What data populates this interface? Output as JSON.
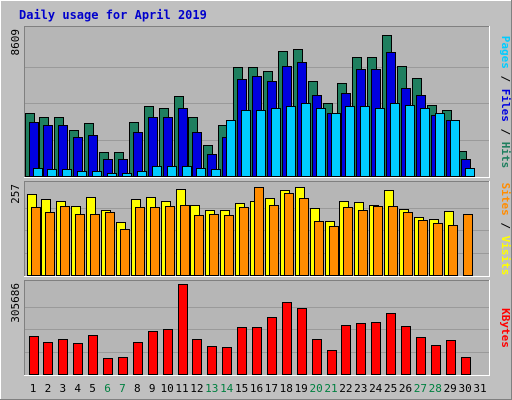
{
  "chart_data": {
    "type": "bar",
    "title": "Daily usage for April 2019",
    "colors": {
      "background": "#c0c0c0",
      "panel": "#b6b6b6",
      "title": "#0000cc",
      "hits": "#1f7f5f",
      "files": "#0000e0",
      "pages": "#00ccff",
      "visits": "#ffff00",
      "sites": "#ff8c00",
      "kbytes": "#ff0000",
      "weekend_label": "#008040",
      "weekday_label": "#000000"
    },
    "days": [
      "1",
      "2",
      "3",
      "4",
      "5",
      "6",
      "7",
      "8",
      "9",
      "10",
      "11",
      "12",
      "13",
      "14",
      "15",
      "16",
      "17",
      "18",
      "19",
      "20",
      "21",
      "22",
      "23",
      "24",
      "25",
      "26",
      "27",
      "28",
      "29",
      "30",
      "31"
    ],
    "weekend_days": [
      "6",
      "7",
      "13",
      "14",
      "20",
      "21",
      "27",
      "28"
    ],
    "panels": [
      {
        "id": "hits_files_pages",
        "max_label": "8609",
        "max": 8609,
        "axis_label": {
          "parts": [
            {
              "text": "Pages",
              "color": "#00ccff"
            },
            {
              "text": " / ",
              "color": "#000000"
            },
            {
              "text": "Files",
              "color": "#0000e0"
            },
            {
              "text": " / ",
              "color": "#000000"
            },
            {
              "text": "Hits",
              "color": "#1f7f5f"
            }
          ]
        },
        "series": [
          {
            "name": "Hits",
            "color": "#1f7f5f",
            "values": [
              3700,
              3500,
              3500,
              2700,
              3100,
              1400,
              1400,
              3200,
              4100,
              4000,
              4700,
              3500,
              1800,
              3000,
              6400,
              6400,
              6200,
              7400,
              7500,
              5600,
              4300,
              5500,
              7000,
              7000,
              8300,
              6500,
              5800,
              4200,
              3900,
              1500,
              0
            ]
          },
          {
            "name": "Files",
            "color": "#0000e0",
            "values": [
              3200,
              3000,
              3000,
              2300,
              2400,
              1000,
              1000,
              2600,
              3500,
              3500,
              4000,
              2600,
              1300,
              2300,
              5700,
              5900,
              5600,
              6500,
              6700,
              4800,
              3700,
              4900,
              6300,
              6300,
              7300,
              5200,
              4800,
              3600,
              3300,
              1000,
              0
            ]
          },
          {
            "name": "Pages",
            "color": "#00ccff",
            "values": [
              500,
              400,
              400,
              300,
              300,
              200,
              200,
              300,
              600,
              600,
              600,
              500,
              400,
              3300,
              3900,
              3900,
              4000,
              4100,
              4300,
              4000,
              3700,
              4100,
              4100,
              4000,
              4300,
              4200,
              4000,
              3700,
              3300,
              500,
              0
            ]
          }
        ]
      },
      {
        "id": "visits_sites",
        "max_label": "257",
        "max": 257,
        "axis_label": {
          "parts": [
            {
              "text": "Sites",
              "color": "#ff8c00"
            },
            {
              "text": " / ",
              "color": "#000000"
            },
            {
              "text": "Visits",
              "color": "#ffff00"
            }
          ]
        },
        "series": [
          {
            "name": "Visits",
            "color": "#ffff00",
            "values": [
              230,
              218,
              210,
              196,
              222,
              185,
              150,
              218,
              222,
              212,
              245,
              200,
              185,
              185,
              205,
              210,
              220,
              242,
              252,
              190,
              155,
              212,
              208,
              200,
              244,
              188,
              165,
              160,
              183,
              0,
              0
            ]
          },
          {
            "name": "Sites",
            "color": "#ff8c00",
            "values": [
              193,
              180,
              198,
              175,
              175,
              180,
              130,
              195,
              195,
              197,
              200,
              172,
              175,
              170,
              195,
              252,
              200,
              235,
              220,
              153,
              140,
              195,
              187,
              198,
              198,
              180,
              158,
              148,
              142,
              175,
              0
            ]
          }
        ]
      },
      {
        "id": "kbytes",
        "max_label": "305686",
        "max": 305686,
        "axis_label": {
          "parts": [
            {
              "text": "KBytes",
              "color": "#ff0000"
            }
          ]
        },
        "series": [
          {
            "name": "KBytes",
            "color": "#ff0000",
            "values": [
              130000,
              110000,
              120000,
              105000,
              132000,
              55000,
              58000,
              110000,
              145000,
              152000,
              305686,
              118000,
              95000,
              91000,
              160000,
              160000,
              195000,
              245000,
              225000,
              120000,
              80000,
              165000,
              172000,
              176000,
              208000,
              162000,
              125000,
              100000,
              116000,
              57000,
              0
            ]
          }
        ]
      }
    ]
  }
}
